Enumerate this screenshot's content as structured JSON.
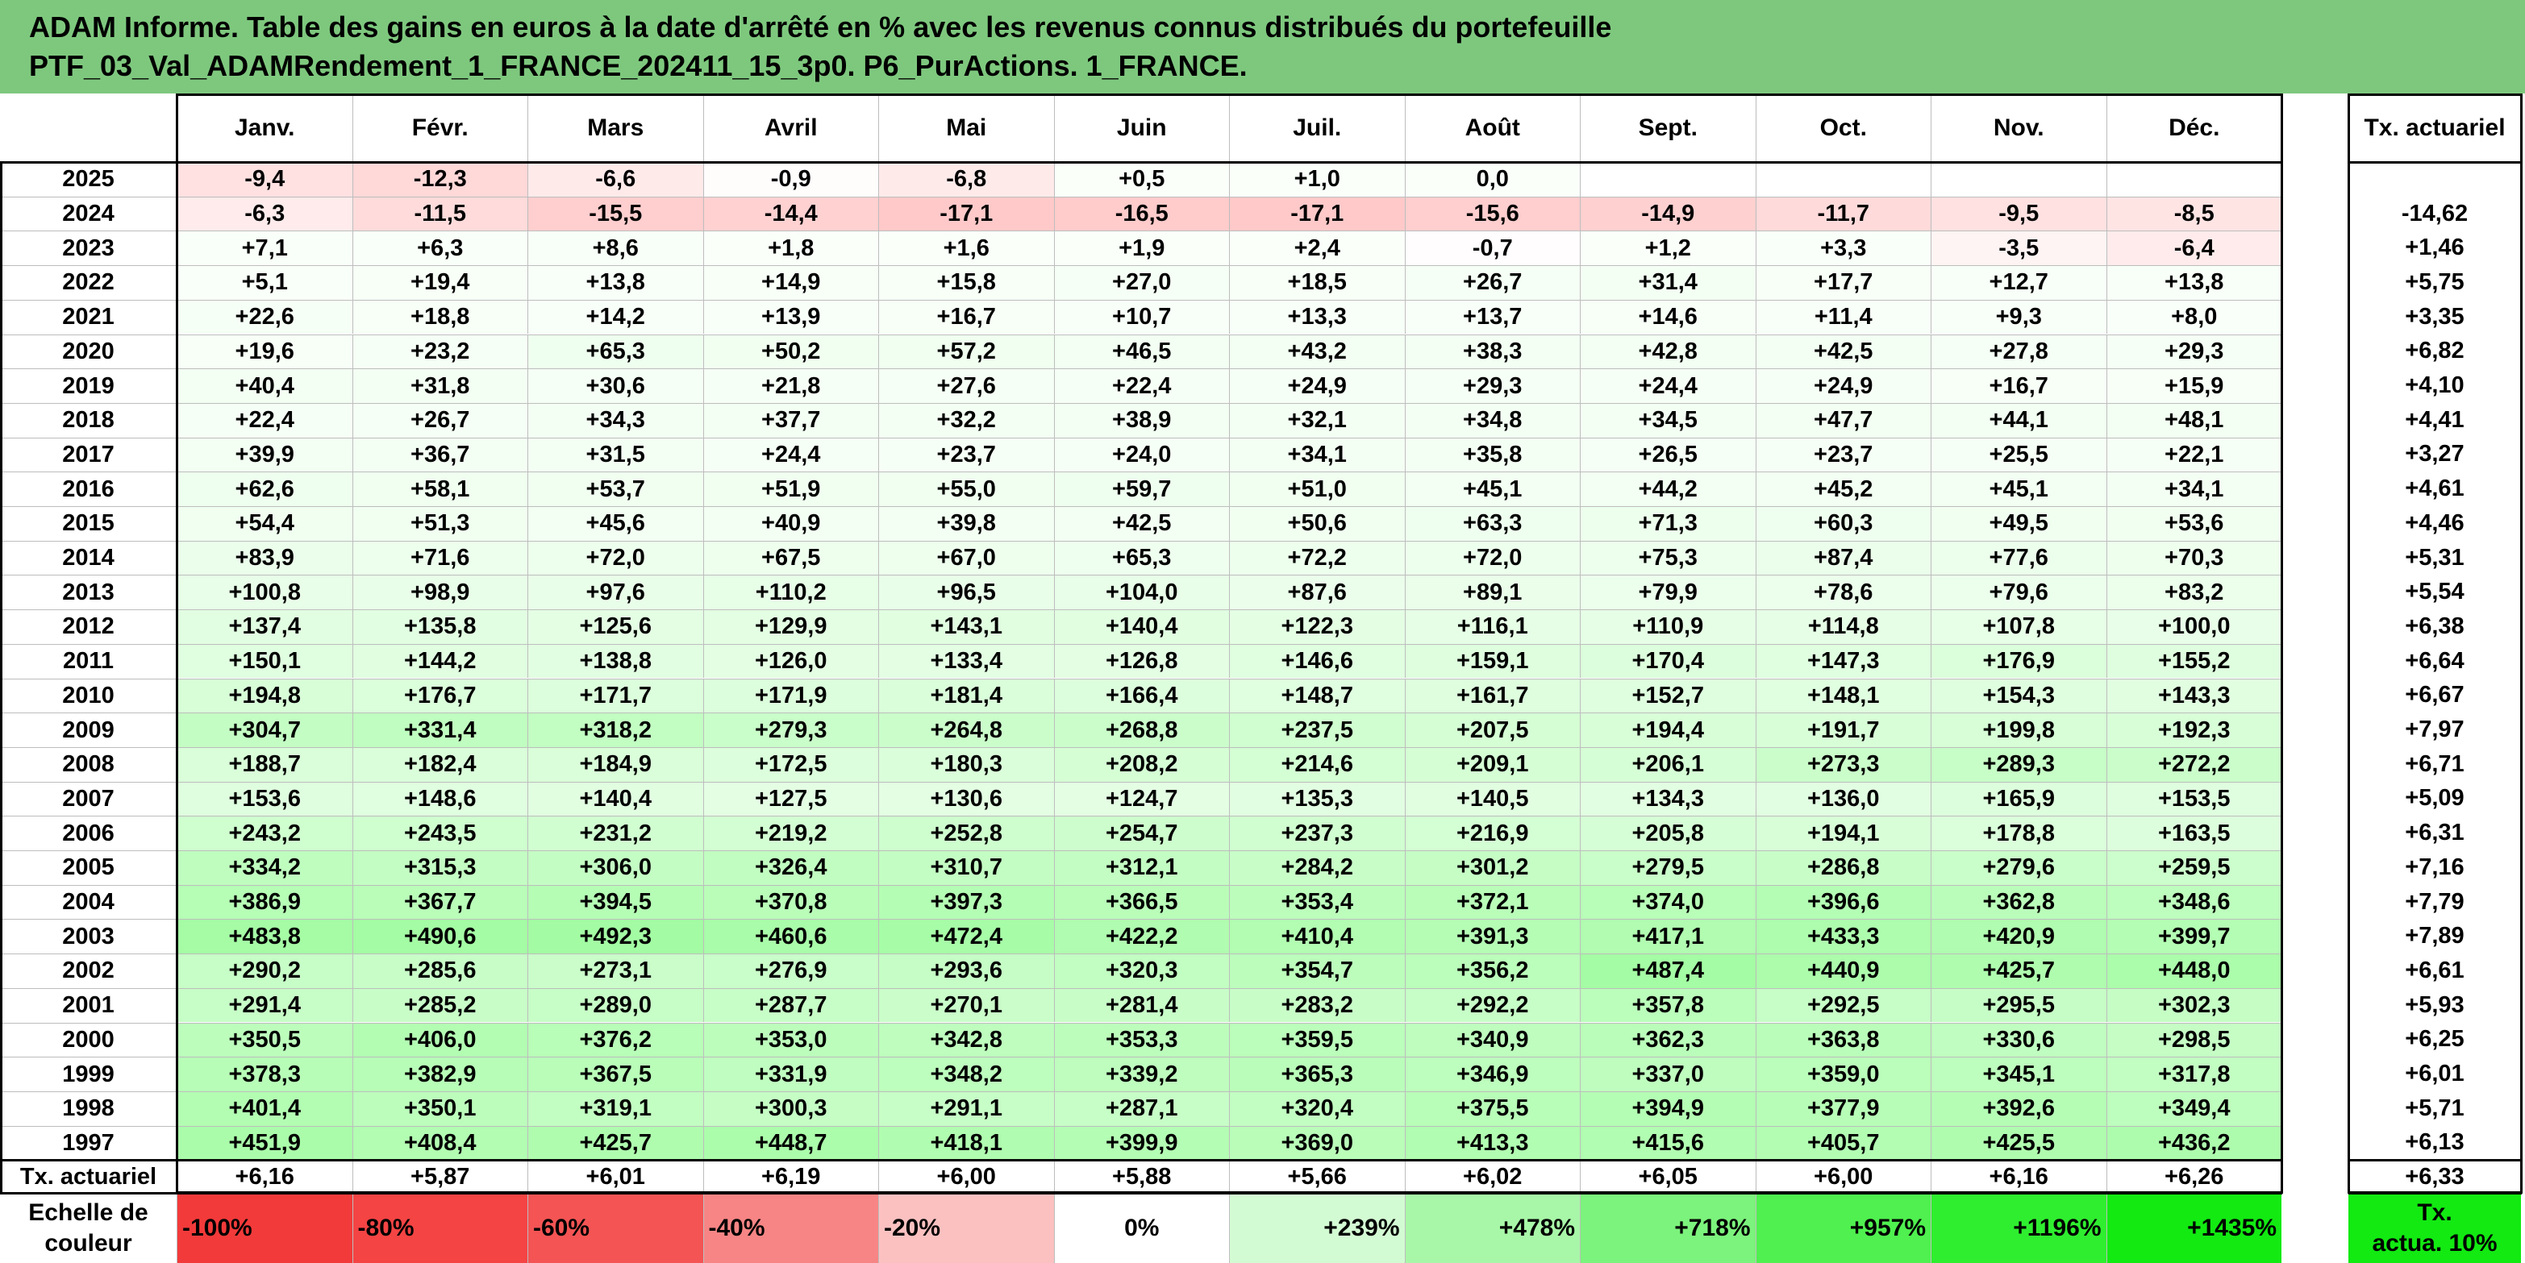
{
  "title": {
    "line1": "ADAM Informe. Table des gains en euros à la date d'arrêté en % avec les revenus connus distribués du portefeuille",
    "line2": "PTF_03_Val_ADAMRendement_1_FRANCE_202411_15_3p0. P6_PurActions. 1_FRANCE."
  },
  "chart_data": {
    "type": "table",
    "months": [
      "Janv.",
      "Févr.",
      "Mars",
      "Avril",
      "Mai",
      "Juin",
      "Juil.",
      "Août",
      "Sept.",
      "Oct.",
      "Nov.",
      "Déc."
    ],
    "rate_header": "Tx. actuariel",
    "rows": [
      {
        "year": "2025",
        "values": [
          "-9,4",
          "-12,3",
          "-6,6",
          "-0,9",
          "-6,8",
          "+0,5",
          "+1,0",
          "0,0",
          "",
          "",
          "",
          ""
        ],
        "rate": ""
      },
      {
        "year": "2024",
        "values": [
          "-6,3",
          "-11,5",
          "-15,5",
          "-14,4",
          "-17,1",
          "-16,5",
          "-17,1",
          "-15,6",
          "-14,9",
          "-11,7",
          "-9,5",
          "-8,5"
        ],
        "rate": "-14,62"
      },
      {
        "year": "2023",
        "values": [
          "+7,1",
          "+6,3",
          "+8,6",
          "+1,8",
          "+1,6",
          "+1,9",
          "+2,4",
          "-0,7",
          "+1,2",
          "+3,3",
          "-3,5",
          "-6,4"
        ],
        "rate": "+1,46"
      },
      {
        "year": "2022",
        "values": [
          "+5,1",
          "+19,4",
          "+13,8",
          "+14,9",
          "+15,8",
          "+27,0",
          "+18,5",
          "+26,7",
          "+31,4",
          "+17,7",
          "+12,7",
          "+13,8"
        ],
        "rate": "+5,75"
      },
      {
        "year": "2021",
        "values": [
          "+22,6",
          "+18,8",
          "+14,2",
          "+13,9",
          "+16,7",
          "+10,7",
          "+13,3",
          "+13,7",
          "+14,6",
          "+11,4",
          "+9,3",
          "+8,0"
        ],
        "rate": "+3,35"
      },
      {
        "year": "2020",
        "values": [
          "+19,6",
          "+23,2",
          "+65,3",
          "+50,2",
          "+57,2",
          "+46,5",
          "+43,2",
          "+38,3",
          "+42,8",
          "+42,5",
          "+27,8",
          "+29,3"
        ],
        "rate": "+6,82"
      },
      {
        "year": "2019",
        "values": [
          "+40,4",
          "+31,8",
          "+30,6",
          "+21,8",
          "+27,6",
          "+22,4",
          "+24,9",
          "+29,3",
          "+24,4",
          "+24,9",
          "+16,7",
          "+15,9"
        ],
        "rate": "+4,10"
      },
      {
        "year": "2018",
        "values": [
          "+22,4",
          "+26,7",
          "+34,3",
          "+37,7",
          "+32,2",
          "+38,9",
          "+32,1",
          "+34,8",
          "+34,5",
          "+47,7",
          "+44,1",
          "+48,1"
        ],
        "rate": "+4,41"
      },
      {
        "year": "2017",
        "values": [
          "+39,9",
          "+36,7",
          "+31,5",
          "+24,4",
          "+23,7",
          "+24,0",
          "+34,1",
          "+35,8",
          "+26,5",
          "+23,7",
          "+25,5",
          "+22,1"
        ],
        "rate": "+3,27"
      },
      {
        "year": "2016",
        "values": [
          "+62,6",
          "+58,1",
          "+53,7",
          "+51,9",
          "+55,0",
          "+59,7",
          "+51,0",
          "+45,1",
          "+44,2",
          "+45,2",
          "+45,1",
          "+34,1"
        ],
        "rate": "+4,61"
      },
      {
        "year": "2015",
        "values": [
          "+54,4",
          "+51,3",
          "+45,6",
          "+40,9",
          "+39,8",
          "+42,5",
          "+50,6",
          "+63,3",
          "+71,3",
          "+60,3",
          "+49,5",
          "+53,6"
        ],
        "rate": "+4,46"
      },
      {
        "year": "2014",
        "values": [
          "+83,9",
          "+71,6",
          "+72,0",
          "+67,5",
          "+67,0",
          "+65,3",
          "+72,2",
          "+72,0",
          "+75,3",
          "+87,4",
          "+77,6",
          "+70,3"
        ],
        "rate": "+5,31"
      },
      {
        "year": "2013",
        "values": [
          "+100,8",
          "+98,9",
          "+97,6",
          "+110,2",
          "+96,5",
          "+104,0",
          "+87,6",
          "+89,1",
          "+79,9",
          "+78,6",
          "+79,6",
          "+83,2"
        ],
        "rate": "+5,54"
      },
      {
        "year": "2012",
        "values": [
          "+137,4",
          "+135,8",
          "+125,6",
          "+129,9",
          "+143,1",
          "+140,4",
          "+122,3",
          "+116,1",
          "+110,9",
          "+114,8",
          "+107,8",
          "+100,0"
        ],
        "rate": "+6,38"
      },
      {
        "year": "2011",
        "values": [
          "+150,1",
          "+144,2",
          "+138,8",
          "+126,0",
          "+133,4",
          "+126,8",
          "+146,6",
          "+159,1",
          "+170,4",
          "+147,3",
          "+176,9",
          "+155,2"
        ],
        "rate": "+6,64"
      },
      {
        "year": "2010",
        "values": [
          "+194,8",
          "+176,7",
          "+171,7",
          "+171,9",
          "+181,4",
          "+166,4",
          "+148,7",
          "+161,7",
          "+152,7",
          "+148,1",
          "+154,3",
          "+143,3"
        ],
        "rate": "+6,67"
      },
      {
        "year": "2009",
        "values": [
          "+304,7",
          "+331,4",
          "+318,2",
          "+279,3",
          "+264,8",
          "+268,8",
          "+237,5",
          "+207,5",
          "+194,4",
          "+191,7",
          "+199,8",
          "+192,3"
        ],
        "rate": "+7,97"
      },
      {
        "year": "2008",
        "values": [
          "+188,7",
          "+182,4",
          "+184,9",
          "+172,5",
          "+180,3",
          "+208,2",
          "+214,6",
          "+209,1",
          "+206,1",
          "+273,3",
          "+289,3",
          "+272,2"
        ],
        "rate": "+6,71"
      },
      {
        "year": "2007",
        "values": [
          "+153,6",
          "+148,6",
          "+140,4",
          "+127,5",
          "+130,6",
          "+124,7",
          "+135,3",
          "+140,5",
          "+134,3",
          "+136,0",
          "+165,9",
          "+153,5"
        ],
        "rate": "+5,09"
      },
      {
        "year": "2006",
        "values": [
          "+243,2",
          "+243,5",
          "+231,2",
          "+219,2",
          "+252,8",
          "+254,7",
          "+237,3",
          "+216,9",
          "+205,8",
          "+194,1",
          "+178,8",
          "+163,5"
        ],
        "rate": "+6,31"
      },
      {
        "year": "2005",
        "values": [
          "+334,2",
          "+315,3",
          "+306,0",
          "+326,4",
          "+310,7",
          "+312,1",
          "+284,2",
          "+301,2",
          "+279,5",
          "+286,8",
          "+279,6",
          "+259,5"
        ],
        "rate": "+7,16"
      },
      {
        "year": "2004",
        "values": [
          "+386,9",
          "+367,7",
          "+394,5",
          "+370,8",
          "+397,3",
          "+366,5",
          "+353,4",
          "+372,1",
          "+374,0",
          "+396,6",
          "+362,8",
          "+348,6"
        ],
        "rate": "+7,79"
      },
      {
        "year": "2003",
        "values": [
          "+483,8",
          "+490,6",
          "+492,3",
          "+460,6",
          "+472,4",
          "+422,2",
          "+410,4",
          "+391,3",
          "+417,1",
          "+433,3",
          "+420,9",
          "+399,7"
        ],
        "rate": "+7,89"
      },
      {
        "year": "2002",
        "values": [
          "+290,2",
          "+285,6",
          "+273,1",
          "+276,9",
          "+293,6",
          "+320,3",
          "+354,7",
          "+356,2",
          "+487,4",
          "+440,9",
          "+425,7",
          "+448,0"
        ],
        "rate": "+6,61"
      },
      {
        "year": "2001",
        "values": [
          "+291,4",
          "+285,2",
          "+289,0",
          "+287,7",
          "+270,1",
          "+281,4",
          "+283,2",
          "+292,2",
          "+357,8",
          "+292,5",
          "+295,5",
          "+302,3"
        ],
        "rate": "+5,93"
      },
      {
        "year": "2000",
        "values": [
          "+350,5",
          "+406,0",
          "+376,2",
          "+353,0",
          "+342,8",
          "+353,3",
          "+359,5",
          "+340,9",
          "+362,3",
          "+363,8",
          "+330,6",
          "+298,5"
        ],
        "rate": "+6,25"
      },
      {
        "year": "1999",
        "values": [
          "+378,3",
          "+382,9",
          "+367,5",
          "+331,9",
          "+348,2",
          "+339,2",
          "+365,3",
          "+346,9",
          "+337,0",
          "+359,0",
          "+345,1",
          "+317,8"
        ],
        "rate": "+6,01"
      },
      {
        "year": "1998",
        "values": [
          "+401,4",
          "+350,1",
          "+319,1",
          "+300,3",
          "+291,1",
          "+287,1",
          "+320,4",
          "+375,5",
          "+394,9",
          "+377,9",
          "+392,6",
          "+349,4"
        ],
        "rate": "+5,71"
      },
      {
        "year": "1997",
        "values": [
          "+451,9",
          "+408,4",
          "+425,7",
          "+448,7",
          "+418,1",
          "+399,9",
          "+369,0",
          "+413,3",
          "+415,6",
          "+405,7",
          "+425,5",
          "+436,2"
        ],
        "rate": "+6,13"
      }
    ],
    "footer": {
      "label": "Tx. actuariel",
      "values": [
        "+6,16",
        "+5,87",
        "+6,01",
        "+6,19",
        "+6,00",
        "+5,88",
        "+5,66",
        "+6,02",
        "+6,05",
        "+6,00",
        "+6,16",
        "+6,26"
      ],
      "rate": "+6,33"
    },
    "legend": {
      "label_line1": "Echelle de",
      "label_line2": "couleur",
      "stops": [
        {
          "label": "-100%",
          "color": "#f23a3a"
        },
        {
          "label": "-80%",
          "color": "#f44444"
        },
        {
          "label": "-60%",
          "color": "#f45454"
        },
        {
          "label": "-40%",
          "color": "#f78585"
        },
        {
          "label": "-20%",
          "color": "#fbc1c1"
        },
        {
          "label": "0%",
          "color": "#ffffff"
        },
        {
          "label": "+239%",
          "color": "#d3fbd3"
        },
        {
          "label": "+478%",
          "color": "#a8f7a8"
        },
        {
          "label": "+718%",
          "color": "#7cf37c"
        },
        {
          "label": "+957%",
          "color": "#4ff04f"
        },
        {
          "label": "+1196%",
          "color": "#2fee2f"
        },
        {
          "label": "+1435%",
          "color": "#12ea12"
        }
      ],
      "rate_line1": "Tx.",
      "rate_line2": "actua. 10%",
      "rate_color": "#12ea12"
    }
  }
}
